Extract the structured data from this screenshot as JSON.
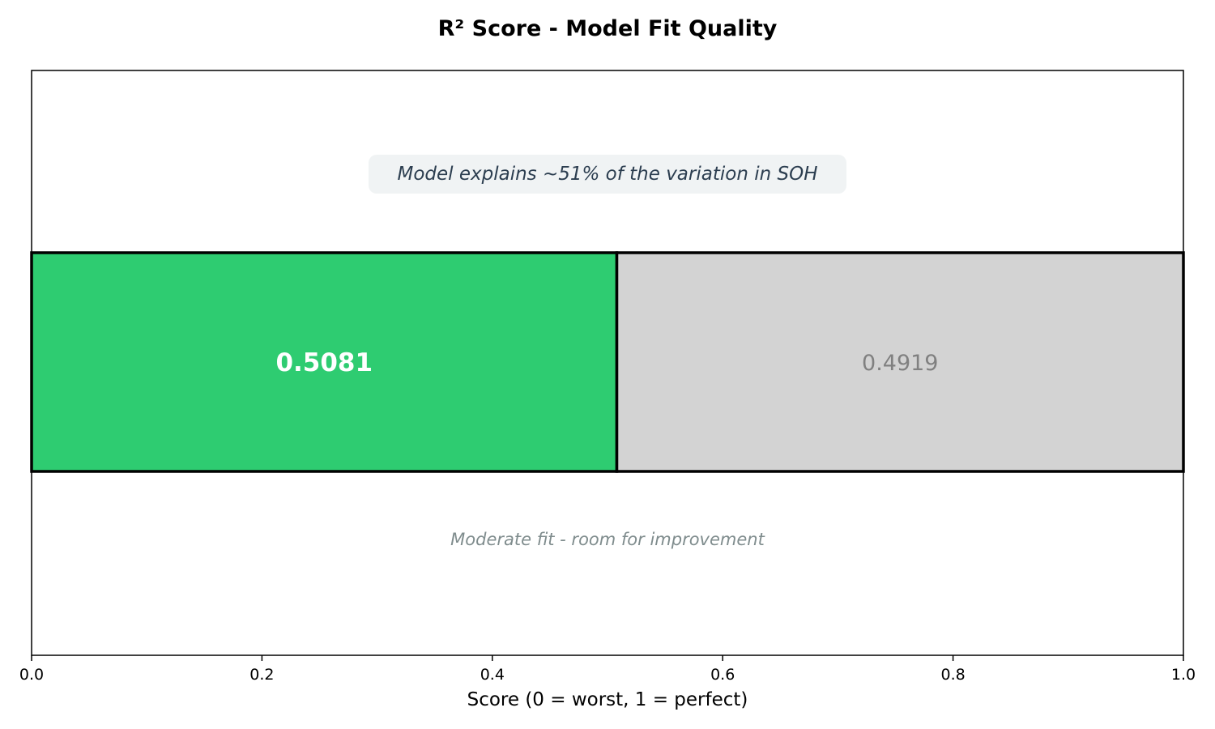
{
  "chart_data": {
    "type": "bar",
    "orientation": "horizontal-stacked",
    "title": "R² Score - Model Fit Quality",
    "xlabel": "Score (0 = worst, 1 = perfect)",
    "ylabel": "",
    "xlim": [
      0,
      1
    ],
    "x_ticks": [
      "0.0",
      "0.2",
      "0.4",
      "0.6",
      "0.8",
      "1.0"
    ],
    "tick_values": [
      0,
      0.2,
      0.4,
      0.6,
      0.8,
      1.0
    ],
    "segments": [
      {
        "value": 0.5081,
        "label": "0.5081",
        "color": "#2ecc71"
      },
      {
        "value": 0.4919,
        "label": "0.4919",
        "color": "#d3d3d3"
      }
    ],
    "annotation": "Model explains ~51% of the variation in SOH",
    "annotation_bg": "#ecf0f1",
    "note": "Moderate fit - room for improvement",
    "grid": false
  }
}
